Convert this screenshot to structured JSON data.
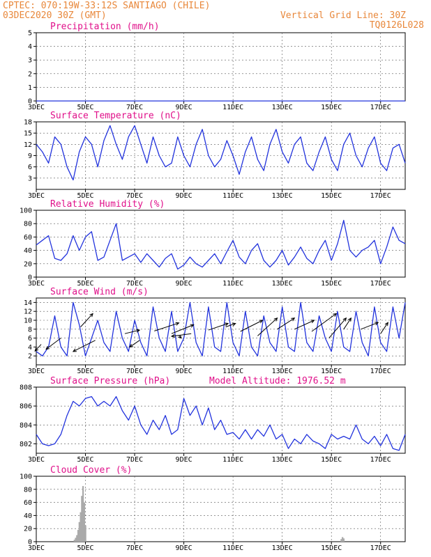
{
  "header": {
    "left_line1": "CPTEC:   070:19W-33:12S  SANTIAGO (CHILE)",
    "left_line2": "03DEC2020 30Z (GMT)",
    "right_line1": "Vertical Grid Line: 30Z",
    "right_line2": "TQ0126L028"
  },
  "colors": {
    "header": "#e8873a",
    "title": "#e0108a",
    "series": "#2233dd",
    "arrows": "#000000",
    "bars": "#aaaaaa"
  },
  "x_axis": {
    "ticks": [
      "3DEC",
      "5DEC",
      "7DEC",
      "9DEC",
      "11DEC",
      "13DEC",
      "15DEC",
      "17DEC"
    ],
    "range_days": [
      3,
      18
    ]
  },
  "chart_data": [
    {
      "type": "line",
      "title": "Precipitation (mm/h)",
      "ylim": [
        0,
        5
      ],
      "yticks": [
        0,
        1,
        2,
        3,
        4,
        5
      ],
      "x": [
        3,
        18
      ],
      "values": [
        0,
        0
      ]
    },
    {
      "type": "line",
      "title": "Surface Temperature (nC)",
      "ylim": [
        0,
        18
      ],
      "yticks": [
        3,
        6,
        9,
        12,
        15,
        18
      ],
      "x": [
        3.0,
        3.25,
        3.5,
        3.75,
        4.0,
        4.25,
        4.5,
        4.75,
        5.0,
        5.25,
        5.5,
        5.75,
        6.0,
        6.25,
        6.5,
        6.75,
        7.0,
        7.25,
        7.5,
        7.75,
        8.0,
        8.25,
        8.5,
        8.75,
        9.0,
        9.25,
        9.5,
        9.75,
        10.0,
        10.25,
        10.5,
        10.75,
        11.0,
        11.25,
        11.5,
        11.75,
        12.0,
        12.25,
        12.5,
        12.75,
        13.0,
        13.25,
        13.5,
        13.75,
        14.0,
        14.25,
        14.5,
        14.75,
        15.0,
        15.25,
        15.5,
        15.75,
        16.0,
        16.25,
        16.5,
        16.75,
        17.0,
        17.25,
        17.5,
        17.75,
        18.0
      ],
      "values": [
        12,
        10,
        7,
        14,
        12,
        6,
        2.5,
        10,
        14,
        12,
        6,
        13,
        17,
        12,
        8,
        14,
        17,
        12,
        7,
        14,
        9,
        6,
        7,
        14,
        9,
        6,
        12,
        16,
        9,
        6,
        8,
        13,
        9,
        4,
        10,
        14,
        8,
        5,
        12,
        16,
        10,
        7,
        12,
        14,
        7,
        5,
        10,
        14,
        8,
        5,
        12,
        15,
        9,
        6,
        11,
        14,
        7,
        5,
        11,
        12,
        7
      ]
    },
    {
      "type": "line",
      "title": "Relative Humidity (%)",
      "ylim": [
        0,
        100
      ],
      "yticks": [
        0,
        20,
        40,
        60,
        80,
        100
      ],
      "x": [
        3.0,
        3.25,
        3.5,
        3.75,
        4.0,
        4.25,
        4.5,
        4.75,
        5.0,
        5.25,
        5.5,
        5.75,
        6.0,
        6.25,
        6.5,
        6.75,
        7.0,
        7.25,
        7.5,
        7.75,
        8.0,
        8.25,
        8.5,
        8.75,
        9.0,
        9.25,
        9.5,
        9.75,
        10.0,
        10.25,
        10.5,
        10.75,
        11.0,
        11.25,
        11.5,
        11.75,
        12.0,
        12.25,
        12.5,
        12.75,
        13.0,
        13.25,
        13.5,
        13.75,
        14.0,
        14.25,
        14.5,
        14.75,
        15.0,
        15.25,
        15.5,
        15.75,
        16.0,
        16.25,
        16.5,
        16.75,
        17.0,
        17.25,
        17.5,
        17.75,
        18.0
      ],
      "values": [
        48,
        55,
        62,
        28,
        25,
        35,
        62,
        40,
        60,
        68,
        25,
        30,
        55,
        80,
        25,
        30,
        35,
        22,
        35,
        25,
        15,
        28,
        35,
        12,
        18,
        30,
        20,
        15,
        25,
        35,
        20,
        38,
        55,
        30,
        20,
        40,
        50,
        25,
        15,
        25,
        40,
        18,
        30,
        45,
        28,
        20,
        40,
        55,
        25,
        50,
        85,
        40,
        30,
        40,
        45,
        55,
        20,
        45,
        75,
        55,
        50
      ]
    },
    {
      "type": "line",
      "title": "Surface Wind (m/s)",
      "ylim": [
        0,
        15
      ],
      "yticks": [
        2,
        4,
        6,
        8,
        10,
        12,
        14
      ],
      "x": [
        3.0,
        3.25,
        3.5,
        3.75,
        4.0,
        4.25,
        4.5,
        4.75,
        5.0,
        5.25,
        5.5,
        5.75,
        6.0,
        6.25,
        6.5,
        6.75,
        7.0,
        7.25,
        7.5,
        7.75,
        8.0,
        8.25,
        8.5,
        8.75,
        9.0,
        9.25,
        9.5,
        9.75,
        10.0,
        10.25,
        10.5,
        10.75,
        11.0,
        11.25,
        11.5,
        11.75,
        12.0,
        12.25,
        12.5,
        12.75,
        13.0,
        13.25,
        13.5,
        13.75,
        14.0,
        14.25,
        14.5,
        14.75,
        15.0,
        15.25,
        15.5,
        15.75,
        16.0,
        16.25,
        16.5,
        16.75,
        17.0,
        17.25,
        17.5,
        17.75,
        18.0
      ],
      "values": [
        3,
        2,
        4,
        11,
        4,
        2,
        14,
        9,
        2,
        6,
        10,
        5,
        3,
        12,
        6,
        3,
        10,
        5,
        2,
        13,
        6,
        3,
        12,
        3,
        6,
        14,
        5,
        2,
        13,
        4,
        3,
        14,
        5,
        2,
        12,
        4,
        2,
        11,
        5,
        3,
        13,
        4,
        3,
        14,
        5,
        3,
        11,
        6,
        3,
        12,
        4,
        3,
        12,
        5,
        2,
        13,
        5,
        3,
        13,
        6,
        14
      ],
      "arrows": [
        {
          "x": 3.2,
          "y": 4.6,
          "dx": -0.25,
          "dy": -1.5
        },
        {
          "x": 4.0,
          "y": 6.0,
          "dx": -0.6,
          "dy": -2.5
        },
        {
          "x": 4.8,
          "y": 8.5,
          "dx": 0.5,
          "dy": 3.0
        },
        {
          "x": 5.4,
          "y": 5.5,
          "dx": -0.9,
          "dy": -2.5
        },
        {
          "x": 6.6,
          "y": 7.0,
          "dx": 0.6,
          "dy": 0.8
        },
        {
          "x": 7.2,
          "y": 5.5,
          "dx": -0.4,
          "dy": -1.5
        },
        {
          "x": 7.8,
          "y": 7.6,
          "dx": 1.0,
          "dy": 1.8
        },
        {
          "x": 8.5,
          "y": 7.0,
          "dx": 0.9,
          "dy": 2.0
        },
        {
          "x": 8.8,
          "y": 6.5,
          "dx": 0.1,
          "dy": -0.5
        },
        {
          "x": 9.3,
          "y": 7.0,
          "dx": -0.8,
          "dy": -0.6
        },
        {
          "x": 10.0,
          "y": 7.8,
          "dx": 0.8,
          "dy": 1.5
        },
        {
          "x": 10.7,
          "y": 8.5,
          "dx": 0.4,
          "dy": 0.8
        },
        {
          "x": 11.3,
          "y": 7.5,
          "dx": 0.9,
          "dy": 2.5
        },
        {
          "x": 12.0,
          "y": 6.5,
          "dx": 0.8,
          "dy": 4.0
        },
        {
          "x": 12.8,
          "y": 8.0,
          "dx": 0.7,
          "dy": 2.5
        },
        {
          "x": 13.5,
          "y": 8.0,
          "dx": 0.8,
          "dy": 2.0
        },
        {
          "x": 14.2,
          "y": 7.5,
          "dx": 1.0,
          "dy": 4.0
        },
        {
          "x": 14.9,
          "y": 6.0,
          "dx": 0.7,
          "dy": 4.5
        },
        {
          "x": 15.5,
          "y": 8.0,
          "dx": 0.3,
          "dy": 2.5
        },
        {
          "x": 16.2,
          "y": 8.0,
          "dx": 0.7,
          "dy": 1.5
        },
        {
          "x": 17.0,
          "y": 7.0,
          "dx": 0.3,
          "dy": 2.5
        }
      ]
    },
    {
      "type": "line",
      "title": "Surface Pressure (hPa)",
      "ylim": [
        801,
        808
      ],
      "yticks": [
        802,
        804,
        806,
        808
      ],
      "x": [
        3.0,
        3.25,
        3.5,
        3.75,
        4.0,
        4.25,
        4.5,
        4.75,
        5.0,
        5.25,
        5.5,
        5.75,
        6.0,
        6.25,
        6.5,
        6.75,
        7.0,
        7.25,
        7.5,
        7.75,
        8.0,
        8.25,
        8.5,
        8.75,
        9.0,
        9.25,
        9.5,
        9.75,
        10.0,
        10.25,
        10.5,
        10.75,
        11.0,
        11.25,
        11.5,
        11.75,
        12.0,
        12.25,
        12.5,
        12.75,
        13.0,
        13.25,
        13.5,
        13.75,
        14.0,
        14.25,
        14.5,
        14.75,
        15.0,
        15.25,
        15.5,
        15.75,
        16.0,
        16.25,
        16.5,
        16.75,
        17.0,
        17.25,
        17.5,
        17.75,
        18.0
      ],
      "values": [
        803,
        802,
        801.8,
        802,
        803,
        805,
        806.5,
        806,
        806.8,
        807,
        806,
        806.5,
        806,
        807,
        805.5,
        804.5,
        806,
        804,
        803,
        804.5,
        803.5,
        805,
        803,
        803.5,
        806.8,
        805,
        806,
        804,
        805.8,
        803.5,
        804.5,
        803,
        803.2,
        802.5,
        803.5,
        802.5,
        803.5,
        802.8,
        804,
        802.5,
        803,
        801.5,
        802.5,
        802,
        803,
        802.3,
        802,
        801.5,
        803,
        802.5,
        802.8,
        802.5,
        804,
        802.5,
        802,
        802.8,
        801.8,
        803,
        801.5,
        801.3,
        803
      ],
      "annotation": "Model Altitude: 1976.52 m"
    },
    {
      "type": "bar",
      "title": "Cloud Cover (%)",
      "ylim": [
        0,
        100
      ],
      "yticks": [
        0,
        20,
        40,
        60,
        80,
        100
      ],
      "x": [
        4.55,
        4.6,
        4.65,
        4.7,
        4.75,
        4.8,
        4.85,
        4.9,
        4.95,
        5.0,
        15.4,
        15.45,
        15.5
      ],
      "values": [
        3,
        6,
        10,
        18,
        30,
        45,
        70,
        85,
        60,
        25,
        4,
        7,
        5
      ]
    }
  ]
}
